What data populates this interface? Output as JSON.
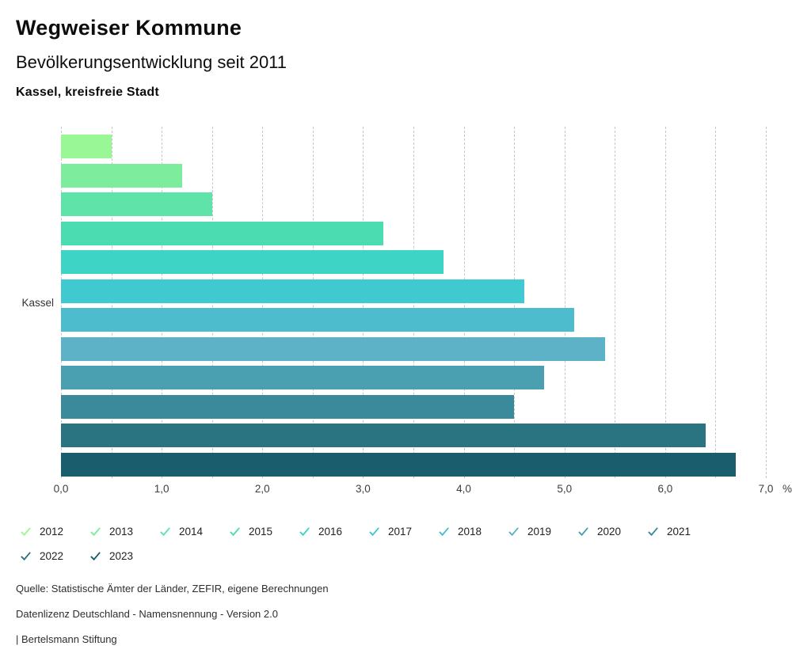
{
  "header": {
    "title": "Wegweiser Kommune",
    "subtitle": "Bevölkerungsentwicklung seit 2011",
    "region": "Kassel, kreisfreie Stadt"
  },
  "chart_data": {
    "type": "bar",
    "orientation": "horizontal",
    "title": "Bevölkerungsentwicklung seit 2011",
    "group_label": "Kassel",
    "unit": "%",
    "xlim": [
      0,
      7
    ],
    "xticks": [
      "0,0",
      "1,0",
      "2,0",
      "3,0",
      "4,0",
      "5,0",
      "6,0",
      "7,0"
    ],
    "xtick_values": [
      0,
      1,
      2,
      3,
      4,
      5,
      6,
      7
    ],
    "gridline_step": 0.5,
    "grid": true,
    "legend_position": "bottom",
    "series": [
      {
        "name": "2012",
        "value": 0.5,
        "color": "#9af795"
      },
      {
        "name": "2013",
        "value": 1.2,
        "color": "#7dec9d"
      },
      {
        "name": "2014",
        "value": 1.5,
        "color": "#5fe3a8"
      },
      {
        "name": "2015",
        "value": 3.2,
        "color": "#4bdcb2"
      },
      {
        "name": "2016",
        "value": 3.8,
        "color": "#3ed4c5"
      },
      {
        "name": "2017",
        "value": 4.6,
        "color": "#40c9d1"
      },
      {
        "name": "2018",
        "value": 5.1,
        "color": "#4dbccd"
      },
      {
        "name": "2019",
        "value": 5.4,
        "color": "#5db2c7"
      },
      {
        "name": "2020",
        "value": 4.8,
        "color": "#4aa0b0"
      },
      {
        "name": "2021",
        "value": 4.5,
        "color": "#3a8a9b"
      },
      {
        "name": "2022",
        "value": 6.4,
        "color": "#2a7381"
      },
      {
        "name": "2023",
        "value": 6.7,
        "color": "#1a5d6c"
      }
    ]
  },
  "footer": {
    "source": "Quelle: Statistische Ämter der Länder, ZEFIR, eigene Berechnungen",
    "license": "Datenlizenz Deutschland - Namensnennung - Version 2.0",
    "attribution": "| Bertelsmann Stiftung"
  }
}
